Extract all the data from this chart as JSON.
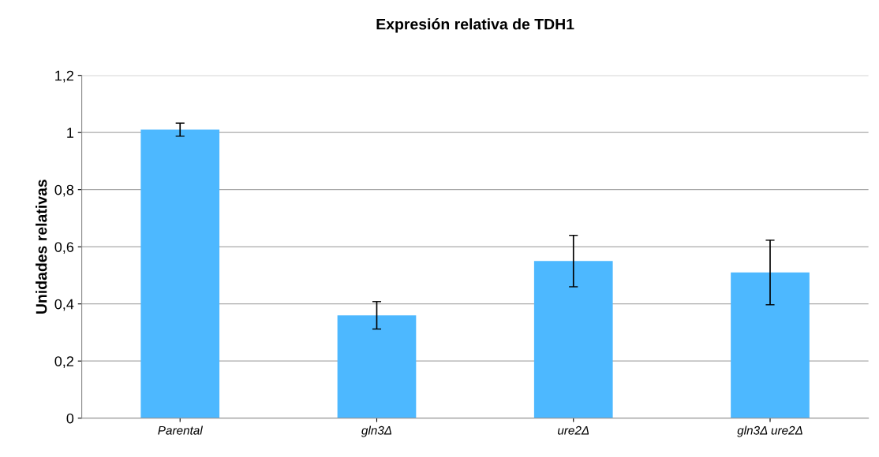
{
  "chart_data": {
    "type": "bar",
    "title": "Expresión relativa de TDH1",
    "ylabel": "Unidades relativas",
    "categories": [
      "Parental",
      "gln3Δ",
      "ure2Δ",
      "gln3Δ ure2Δ"
    ],
    "values": [
      1.01,
      0.36,
      0.55,
      0.51
    ],
    "errors": [
      0.023,
      0.048,
      0.09,
      0.113
    ],
    "color": "#4db8ff",
    "ylim": [
      0,
      1.2
    ],
    "yticks": [
      0,
      {
        "value": 0.2,
        "label": "0,2"
      },
      {
        "value": 0.4,
        "label": "0,4"
      },
      {
        "value": 0.6,
        "label": "0,6"
      },
      {
        "value": 0.8,
        "label": "0,8"
      },
      1,
      {
        "value": 1.2,
        "label": "1,2"
      }
    ],
    "grid": "y",
    "legend": false
  }
}
